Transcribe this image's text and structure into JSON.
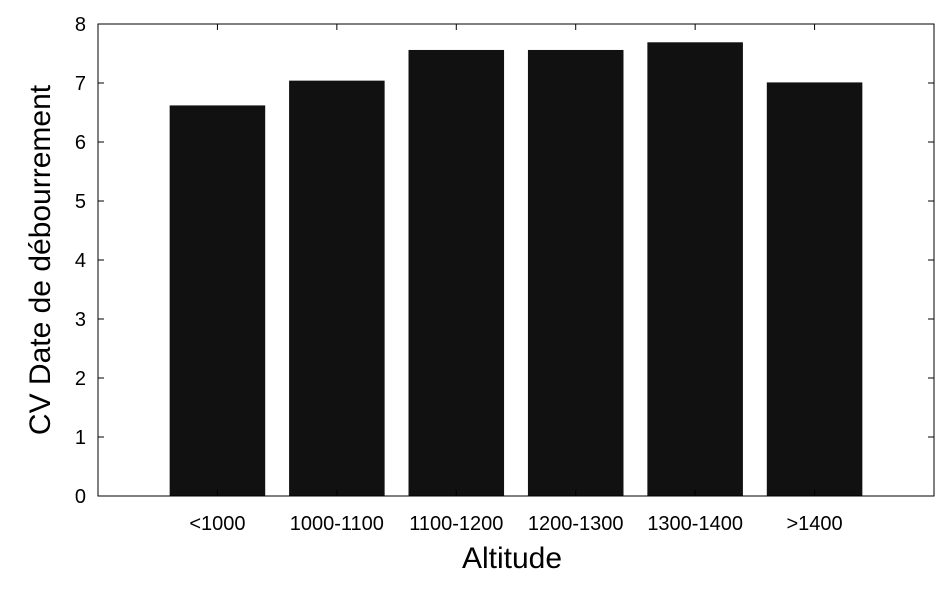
{
  "chart_data": {
    "type": "bar",
    "categories": [
      "<1000",
      "1000-1100",
      "1100-1200",
      "1200-1300",
      "1300-1400",
      ">1400"
    ],
    "values": [
      6.62,
      7.04,
      7.56,
      7.56,
      7.69,
      7.01
    ],
    "title": "",
    "xlabel": "Altitude",
    "ylabel": "CV Date de débourrement",
    "ylim": [
      0,
      8
    ],
    "yticks": [
      0,
      1,
      2,
      3,
      4,
      5,
      6,
      7,
      8
    ],
    "bar_color": "#111111",
    "grid": false,
    "legend": "none"
  }
}
